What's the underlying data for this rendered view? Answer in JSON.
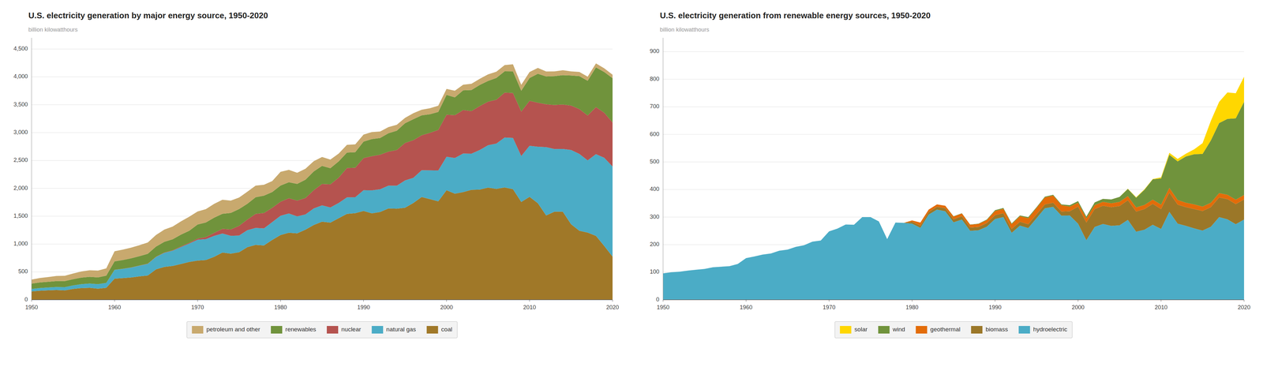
{
  "chart_data": [
    {
      "type": "area",
      "stacked": true,
      "grid": true,
      "legend": "bottom",
      "title": "U.S. electricity generation by major energy source, 1950-2020",
      "y_label": "billion kilowatthours",
      "x": [
        1950,
        1951,
        1952,
        1953,
        1954,
        1955,
        1956,
        1957,
        1958,
        1959,
        1960,
        1961,
        1962,
        1963,
        1964,
        1965,
        1966,
        1967,
        1968,
        1969,
        1970,
        1971,
        1972,
        1973,
        1974,
        1975,
        1976,
        1977,
        1978,
        1979,
        1980,
        1981,
        1982,
        1983,
        1984,
        1985,
        1986,
        1987,
        1988,
        1989,
        1990,
        1991,
        1992,
        1993,
        1994,
        1995,
        1996,
        1997,
        1998,
        1999,
        2000,
        2001,
        2002,
        2003,
        2004,
        2005,
        2006,
        2007,
        2008,
        2009,
        2010,
        2011,
        2012,
        2013,
        2014,
        2015,
        2016,
        2017,
        2018,
        2019,
        2020
      ],
      "xlim": [
        1950,
        2020
      ],
      "xticks": [
        1950,
        1960,
        1970,
        1980,
        1990,
        2000,
        2010,
        2020
      ],
      "ylim": [
        0,
        4700
      ],
      "yticks": [
        0,
        500,
        {
          "value": 1000,
          "label": "1,000"
        },
        {
          "value": 1500,
          "label": "1,500"
        },
        {
          "value": 2000,
          "label": "2,000"
        },
        {
          "value": 2500,
          "label": "2,500"
        },
        {
          "value": 3000,
          "label": "3,000"
        },
        {
          "value": 3500,
          "label": "3,500"
        },
        {
          "value": 4000,
          "label": "4,000"
        },
        {
          "value": 4500,
          "label": "4,500"
        }
      ],
      "series": [
        {
          "name": "coal",
          "color": "#A07828",
          "values": [
            150,
            163,
            170,
            175,
            169,
            195,
            210,
            215,
            200,
            215,
            380,
            390,
            400,
            420,
            436,
            547,
            590,
            608,
            643,
            680,
            704,
            713,
            771,
            848,
            828,
            853,
            944,
            985,
            976,
            1075,
            1162,
            1203,
            1192,
            1259,
            1342,
            1402,
            1385,
            1464,
            1541,
            1554,
            1594,
            1551,
            1576,
            1639,
            1635,
            1652,
            1737,
            1845,
            1807,
            1767,
            1966,
            1904,
            1933,
            1973,
            1978,
            2013,
            1990,
            2016,
            1985,
            1755,
            1847,
            1733,
            1514,
            1581,
            1581,
            1356,
            1239,
            1206,
            1146,
            966,
            774
          ]
        },
        {
          "name": "natural gas",
          "color": "#4BACC6",
          "values": [
            44,
            48,
            51,
            55,
            57,
            62,
            70,
            77,
            80,
            88,
            157,
            165,
            178,
            192,
            208,
            222,
            252,
            272,
            302,
            330,
            373,
            375,
            376,
            341,
            320,
            300,
            305,
            305,
            305,
            320,
            346,
            346,
            305,
            273,
            297,
            292,
            272,
            273,
            296,
            287,
            372,
            413,
            408,
            410,
            412,
            490,
            452,
            479,
            516,
            553,
            601,
            640,
            691,
            649,
            710,
            760,
            813,
            896,
            920,
            824,
            917,
            1013,
            1225,
            1125,
            1126,
            1332,
            1378,
            1296,
            1468,
            1582,
            1617
          ]
        },
        {
          "name": "nuclear",
          "color": "#B5534F",
          "values": [
            0,
            0,
            0,
            0,
            0,
            0,
            0,
            0,
            0,
            0,
            1,
            2,
            2,
            3,
            4,
            4,
            6,
            8,
            13,
            14,
            22,
            38,
            54,
            83,
            114,
            173,
            191,
            251,
            276,
            255,
            251,
            273,
            283,
            294,
            328,
            384,
            414,
            455,
            527,
            529,
            577,
            613,
            619,
            610,
            640,
            673,
            675,
            628,
            673,
            728,
            754,
            769,
            780,
            764,
            788,
            782,
            787,
            806,
            806,
            799,
            807,
            790,
            769,
            789,
            797,
            797,
            805,
            805,
            843,
            809,
            790
          ]
        },
        {
          "name": "renewables",
          "color": "#70933C",
          "values": [
            96,
            100,
            102,
            106,
            109,
            112,
            118,
            120,
            122,
            130,
            151,
            157,
            164,
            168,
            178,
            182,
            192,
            198,
            211,
            215,
            251,
            261,
            273,
            271,
            296,
            302,
            283,
            300,
            311,
            284,
            291,
            287,
            299,
            329,
            336,
            325,
            290,
            291,
            278,
            279,
            296,
            306,
            301,
            330,
            347,
            353,
            376,
            358,
            333,
            323,
            355,
            319,
            355,
            378,
            379,
            372,
            391,
            382,
            387,
            374,
            408,
            520,
            500,
            518,
            527,
            540,
            592,
            623,
            713,
            730,
            795
          ]
        },
        {
          "name": "petroleum and other",
          "color": "#C8A96E",
          "values": [
            73,
            80,
            85,
            92,
            96,
            102,
            110,
            118,
            122,
            130,
            182,
            186,
            192,
            196,
            202,
            208,
            220,
            228,
            238,
            252,
            234,
            240,
            248,
            252,
            222,
            206,
            216,
            207,
            196,
            196,
            246,
            222,
            200,
            196,
            184,
            160,
            154,
            140,
            138,
            140,
            126,
            126,
            116,
            110,
            106,
            97,
            108,
            100,
            108,
            112,
            108,
            120,
            100,
            112,
            110,
            118,
            112,
            112,
            128,
            105,
            108,
            104,
            89,
            85,
            88,
            73,
            74,
            74,
            72,
            67,
            63
          ]
        }
      ]
    },
    {
      "type": "area",
      "stacked": true,
      "grid": true,
      "legend": "bottom",
      "title": "U.S. electricity generation from renewable energy sources, 1950-2020",
      "y_label": "billion kilowatthours",
      "x": [
        1950,
        1951,
        1952,
        1953,
        1954,
        1955,
        1956,
        1957,
        1958,
        1959,
        1960,
        1961,
        1962,
        1963,
        1964,
        1965,
        1966,
        1967,
        1968,
        1969,
        1970,
        1971,
        1972,
        1973,
        1974,
        1975,
        1976,
        1977,
        1978,
        1979,
        1980,
        1981,
        1982,
        1983,
        1984,
        1985,
        1986,
        1987,
        1988,
        1989,
        1990,
        1991,
        1992,
        1993,
        1994,
        1995,
        1996,
        1997,
        1998,
        1999,
        2000,
        2001,
        2002,
        2003,
        2004,
        2005,
        2006,
        2007,
        2008,
        2009,
        2010,
        2011,
        2012,
        2013,
        2014,
        2015,
        2016,
        2017,
        2018,
        2019,
        2020
      ],
      "xlim": [
        1950,
        2020
      ],
      "xticks": [
        1950,
        1960,
        1970,
        1980,
        1990,
        2000,
        2010,
        2020
      ],
      "ylim": [
        0,
        950
      ],
      "yticks": [
        0,
        100,
        200,
        300,
        400,
        500,
        600,
        700,
        800,
        900
      ],
      "series": [
        {
          "name": "hydroelectric",
          "color": "#4BACC6",
          "values": [
            96,
            100,
            102,
            106,
            109,
            112,
            118,
            120,
            122,
            130,
            151,
            157,
            164,
            168,
            178,
            182,
            192,
            198,
            211,
            215,
            248,
            258,
            273,
            272,
            300,
            300,
            284,
            220,
            280,
            279,
            276,
            261,
            309,
            327,
            321,
            281,
            291,
            250,
            252,
            265,
            293,
            300,
            243,
            269,
            260,
            296,
            332,
            337,
            305,
            306,
            276,
            216,
            264,
            275,
            268,
            270,
            290,
            247,
            254,
            272,
            257,
            319,
            276,
            268,
            259,
            251,
            265,
            300,
            292,
            274,
            291
          ]
        },
        {
          "name": "biomass",
          "color": "#9B7728",
          "values": [
            0,
            0,
            0,
            0,
            0,
            0,
            0,
            0,
            0,
            0,
            0,
            0,
            0,
            0,
            0,
            0,
            0,
            0,
            0,
            0,
            0,
            0,
            0,
            0,
            0,
            0,
            0,
            0,
            0,
            0,
            7,
            8,
            9,
            10,
            11,
            11,
            12,
            12,
            12,
            13,
            14,
            14,
            14,
            14,
            14,
            14,
            14,
            15,
            15,
            15,
            62,
            64,
            65,
            66,
            68,
            70,
            71,
            73,
            75,
            76,
            72,
            70,
            69,
            68,
            70,
            71,
            71,
            71,
            73,
            73,
            73
          ]
        },
        {
          "name": "geothermal",
          "color": "#E36C09",
          "values": [
            0,
            0,
            0,
            0,
            0,
            0,
            0,
            0,
            0,
            0,
            0,
            0,
            0,
            0,
            0,
            0,
            0,
            0,
            0,
            0,
            0,
            0,
            0,
            0,
            0,
            0,
            0,
            0,
            0,
            0,
            5,
            11,
            9,
            9,
            9,
            10,
            10,
            10,
            11,
            11,
            15,
            16,
            17,
            20,
            22,
            23,
            25,
            26,
            23,
            17,
            14,
            15,
            14,
            14,
            14,
            15,
            15,
            15,
            15,
            15,
            16,
            17,
            17,
            16,
            17,
            16,
            16,
            16,
            16,
            16,
            16
          ]
        },
        {
          "name": "wind",
          "color": "#70933C",
          "values": [
            0,
            0,
            0,
            0,
            0,
            0,
            0,
            0,
            0,
            0,
            0,
            0,
            0,
            0,
            0,
            0,
            0,
            0,
            0,
            0,
            0,
            0,
            0,
            0,
            0,
            0,
            0,
            0,
            0,
            0,
            0,
            0,
            0,
            0,
            0,
            1,
            1,
            1,
            1,
            2,
            3,
            3,
            3,
            3,
            4,
            3,
            3,
            3,
            3,
            5,
            6,
            7,
            10,
            11,
            14,
            18,
            26,
            35,
            55,
            74,
            95,
            120,
            140,
            168,
            182,
            191,
            226,
            254,
            275,
            295,
            338
          ]
        },
        {
          "name": "solar",
          "color": "#FFD700",
          "values": [
            0,
            0,
            0,
            0,
            0,
            0,
            0,
            0,
            0,
            0,
            0,
            0,
            0,
            0,
            0,
            0,
            0,
            0,
            0,
            0,
            0,
            0,
            0,
            0,
            0,
            0,
            0,
            0,
            0,
            0,
            0,
            0,
            0,
            0,
            0,
            0,
            0,
            0,
            0,
            0,
            0,
            0,
            0,
            0,
            0,
            0,
            0,
            0,
            0,
            0,
            0,
            0,
            0,
            0,
            0,
            0,
            1,
            2,
            2,
            1,
            4,
            7,
            9,
            10,
            18,
            39,
            71,
            77,
            96,
            91,
            91
          ]
        }
      ]
    }
  ]
}
